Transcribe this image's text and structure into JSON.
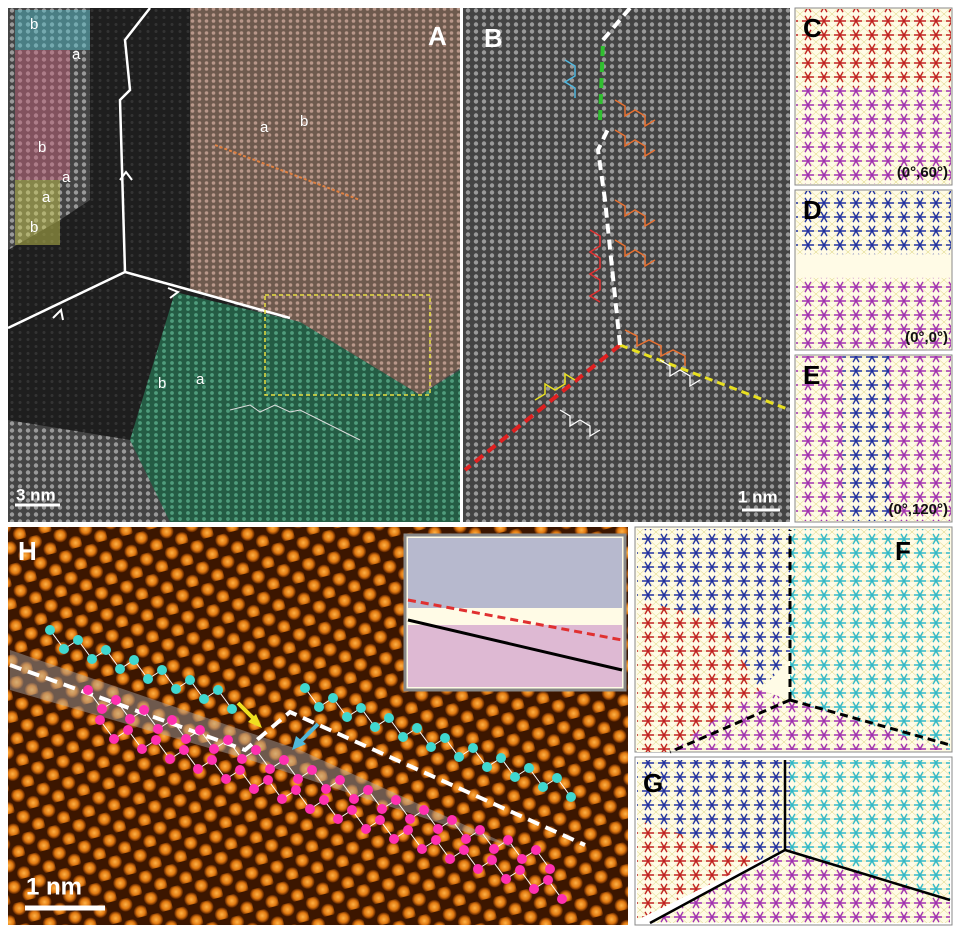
{
  "panels": {
    "A": {
      "label": "A",
      "scale_bar": "3 nm",
      "annotations": [
        "b",
        "a",
        "b",
        "a",
        "a",
        "b",
        "a",
        "b",
        "b",
        "a"
      ]
    },
    "B": {
      "label": "B",
      "scale_bar": "1 nm"
    },
    "C": {
      "label": "C",
      "angles": "(0°,60°)"
    },
    "D": {
      "label": "D",
      "angles": "(0°,0°)"
    },
    "E": {
      "label": "E",
      "angles": "(0°,120°)"
    },
    "F": {
      "label": "F"
    },
    "G": {
      "label": "G"
    },
    "H": {
      "label": "H",
      "scale_bar": "1 nm"
    }
  }
}
